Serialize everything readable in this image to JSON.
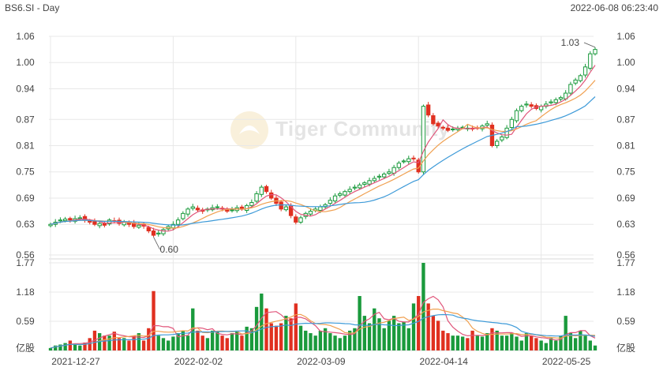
{
  "header": {
    "symbol_period": "BS6.SI - Day",
    "timestamp": "2022-06-08 06:23:40"
  },
  "watermark": {
    "text": "Tiger Community"
  },
  "colors": {
    "up": "#1a9a3c",
    "down": "#e03020",
    "ma5": "#e0557a",
    "ma10": "#f0a050",
    "ma20": "#3d9ad8",
    "grid": "#e8e8e8"
  },
  "chart_data": {
    "type": "candlestick",
    "x_ticks": [
      {
        "label": "2021-12-27",
        "index": 0
      },
      {
        "label": "2022-02-02",
        "index": 25
      },
      {
        "label": "2022-03-09",
        "index": 50
      },
      {
        "label": "2022-04-14",
        "index": 75
      },
      {
        "label": "2022-05-25",
        "index": 100
      }
    ],
    "price_axis": {
      "ticks": [
        "1.06",
        "1.00",
        "0.94",
        "0.87",
        "0.81",
        "0.75",
        "0.69",
        "0.63",
        "0.56"
      ],
      "range": [
        0.56,
        1.06
      ]
    },
    "volume_axis": {
      "ticks": [
        "1.77",
        "1.18",
        "0.59"
      ],
      "unit_label": "亿股",
      "range": [
        0,
        1.77
      ]
    },
    "annotations": [
      {
        "text": "1.03",
        "series": "high",
        "index": 111
      },
      {
        "text": "0.60",
        "series": "low",
        "index": 21
      }
    ],
    "close": [
      0.63,
      0.635,
      0.64,
      0.642,
      0.64,
      0.643,
      0.645,
      0.64,
      0.635,
      0.63,
      0.632,
      0.628,
      0.64,
      0.638,
      0.632,
      0.635,
      0.63,
      0.625,
      0.628,
      0.626,
      0.615,
      0.605,
      0.61,
      0.618,
      0.625,
      0.63,
      0.64,
      0.655,
      0.665,
      0.67,
      0.663,
      0.66,
      0.665,
      0.668,
      0.67,
      0.665,
      0.66,
      0.663,
      0.668,
      0.665,
      0.673,
      0.68,
      0.7,
      0.715,
      0.705,
      0.69,
      0.678,
      0.665,
      0.67,
      0.65,
      0.635,
      0.645,
      0.655,
      0.66,
      0.665,
      0.67,
      0.675,
      0.685,
      0.695,
      0.7,
      0.705,
      0.71,
      0.715,
      0.72,
      0.725,
      0.73,
      0.735,
      0.74,
      0.745,
      0.75,
      0.76,
      0.77,
      0.775,
      0.78,
      0.78,
      0.75,
      0.9,
      0.88,
      0.86,
      0.855,
      0.85,
      0.845,
      0.848,
      0.85,
      0.852,
      0.85,
      0.848,
      0.85,
      0.855,
      0.86,
      0.81,
      0.82,
      0.83,
      0.85,
      0.87,
      0.89,
      0.9,
      0.905,
      0.9,
      0.895,
      0.9,
      0.905,
      0.91,
      0.915,
      0.92,
      0.93,
      0.95,
      0.96,
      0.97,
      0.99,
      1.02,
      1.03
    ],
    "volume": [
      0.05,
      0.1,
      0.12,
      0.15,
      0.2,
      0.12,
      0.1,
      0.16,
      0.25,
      0.4,
      0.35,
      0.3,
      0.3,
      0.38,
      0.25,
      0.25,
      0.2,
      0.3,
      0.35,
      0.2,
      0.45,
      1.2,
      0.3,
      0.25,
      0.2,
      0.28,
      0.35,
      0.4,
      0.3,
      0.85,
      0.4,
      0.3,
      0.25,
      0.4,
      0.38,
      0.3,
      0.25,
      0.35,
      0.4,
      0.3,
      0.48,
      0.45,
      0.88,
      1.15,
      0.85,
      0.55,
      0.5,
      0.55,
      0.7,
      0.65,
      0.95,
      0.5,
      0.4,
      0.35,
      0.3,
      0.4,
      0.45,
      0.35,
      0.3,
      0.25,
      0.3,
      0.4,
      0.45,
      1.1,
      0.7,
      0.55,
      0.85,
      0.65,
      0.45,
      0.6,
      0.7,
      0.55,
      0.58,
      0.45,
      0.95,
      1.1,
      1.77,
      0.95,
      0.7,
      0.6,
      0.4,
      0.35,
      0.3,
      0.3,
      0.28,
      0.25,
      0.4,
      0.3,
      0.28,
      0.35,
      0.45,
      0.4,
      0.3,
      0.3,
      0.35,
      0.28,
      0.2,
      0.35,
      0.3,
      0.25,
      0.2,
      0.15,
      0.25,
      0.2,
      0.3,
      0.7,
      0.35,
      0.25,
      0.4,
      0.3,
      0.2,
      0.1
    ]
  }
}
